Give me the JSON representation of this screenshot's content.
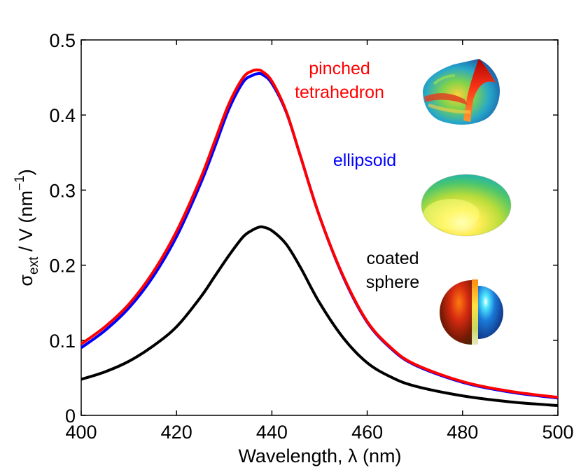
{
  "chart_data": {
    "type": "line",
    "title": "",
    "xlabel": "Wavelength, λ (nm)",
    "ylabel": {
      "sigma": "σ",
      "subscript": "ext",
      "middle": " / V  (nm",
      "superscript": "−1",
      "end": ")"
    },
    "xlim": [
      400,
      500
    ],
    "ylim": [
      0,
      0.5
    ],
    "x_ticks": [
      400,
      420,
      440,
      460,
      480,
      500
    ],
    "y_ticks": [
      0,
      0.1,
      0.2,
      0.3,
      0.4,
      0.5
    ],
    "x_tick_labels": [
      "400",
      "420",
      "440",
      "460",
      "480",
      "500"
    ],
    "y_tick_labels": [
      "0",
      "0.1",
      "0.2",
      "0.3",
      "0.4",
      "0.5"
    ],
    "grid": false,
    "x": [
      400,
      405,
      410,
      415,
      420,
      425,
      428,
      431,
      434,
      436,
      437,
      438,
      440,
      443,
      446,
      450,
      455,
      460,
      465,
      470,
      480,
      490,
      500
    ],
    "series": [
      {
        "name": "pinched tetrahedron",
        "color": "#ff0000",
        "values": [
          0.095,
          0.118,
          0.148,
          0.19,
          0.245,
          0.315,
          0.365,
          0.415,
          0.45,
          0.459,
          0.46,
          0.458,
          0.445,
          0.405,
          0.345,
          0.265,
          0.185,
          0.125,
          0.09,
          0.068,
          0.045,
          0.032,
          0.024
        ]
      },
      {
        "name": "ellipsoid",
        "color": "#0000ff",
        "values": [
          0.09,
          0.113,
          0.143,
          0.184,
          0.238,
          0.308,
          0.357,
          0.408,
          0.444,
          0.453,
          0.455,
          0.454,
          0.442,
          0.404,
          0.345,
          0.265,
          0.184,
          0.124,
          0.089,
          0.067,
          0.044,
          0.031,
          0.023
        ]
      },
      {
        "name": "coated sphere",
        "color": "#000000",
        "values": [
          0.048,
          0.058,
          0.072,
          0.092,
          0.118,
          0.157,
          0.185,
          0.213,
          0.238,
          0.247,
          0.25,
          0.251,
          0.246,
          0.228,
          0.197,
          0.15,
          0.103,
          0.07,
          0.051,
          0.039,
          0.026,
          0.018,
          0.013
        ]
      }
    ],
    "annotations": [
      {
        "lines": [
          "pinched",
          "tetrahedron"
        ],
        "color": "#ff0000"
      },
      {
        "lines": [
          "ellipsoid"
        ],
        "color": "#0000ff"
      },
      {
        "lines": [
          "coated",
          "sphere"
        ],
        "color": "#000000"
      }
    ],
    "insets": [
      "pinched-tetrahedron-shape",
      "ellipsoid-shape",
      "coated-sphere-shape"
    ]
  }
}
